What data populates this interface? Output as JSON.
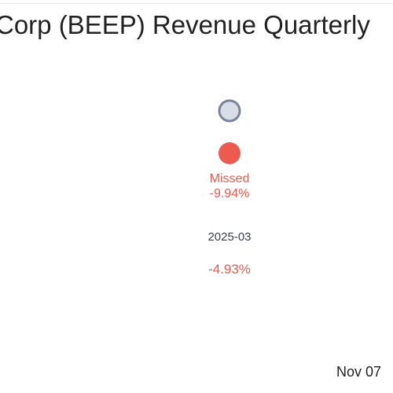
{
  "chart_data": {
    "type": "scatter",
    "title": "Corp (BEEP) Revenue Quarterly",
    "categories": [
      "2025-03"
    ],
    "series": [
      {
        "key": "estimate",
        "values": [
          null
        ],
        "color": "#d9dde8",
        "stroke": "#7b849c"
      },
      {
        "key": "actual",
        "values": [
          null
        ],
        "color": "#ec5a50"
      }
    ],
    "annotations": [
      {
        "category": "2025-03",
        "status": "Missed",
        "surprise": "-9.94%"
      }
    ],
    "change_labels": [
      {
        "category": "2025-03",
        "text": "-4.93%"
      }
    ],
    "colors": {
      "missed": "#ec5a50",
      "estimate_fill": "#d9dde8",
      "estimate_stroke": "#7b849c",
      "text": "#222222",
      "category_text": "#3a3f4b"
    }
  },
  "footer": {
    "date": "Nov 07"
  }
}
